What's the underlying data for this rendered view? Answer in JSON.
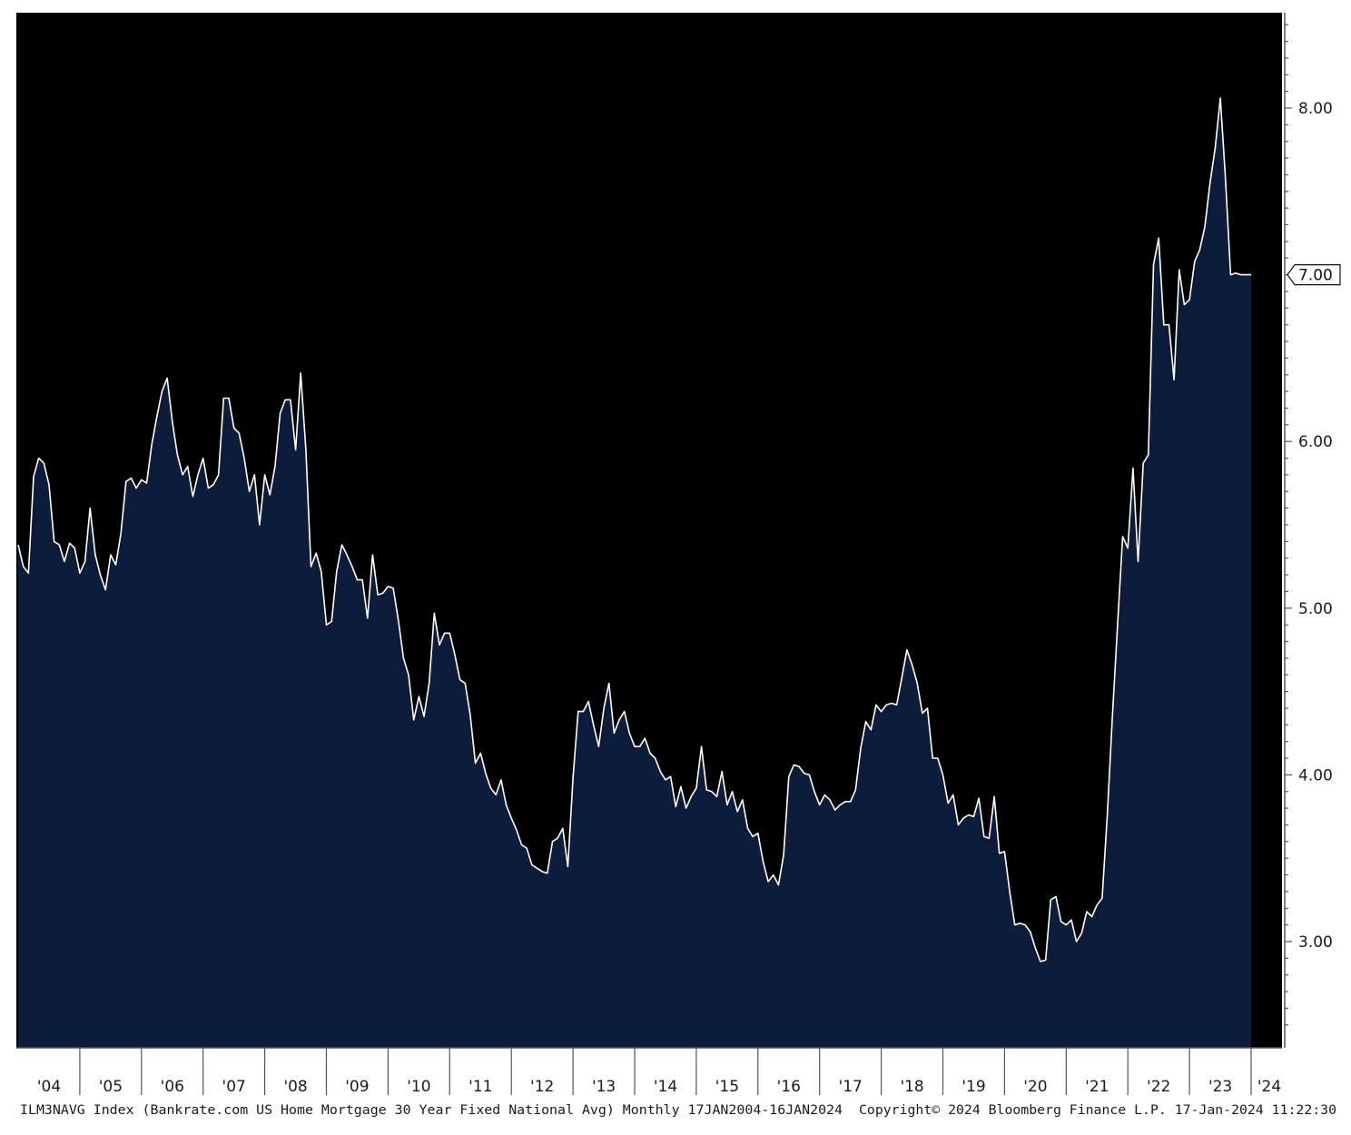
{
  "chart_data": {
    "type": "area",
    "ylim": [
      2.45,
      8.55
    ],
    "y_ticks": [
      "3.00",
      "4.00",
      "5.00",
      "6.00",
      "7.00",
      "8.00"
    ],
    "x_tick_labels": [
      "'04",
      "'05",
      "'06",
      "'07",
      "'08",
      "'09",
      "'10",
      "'11",
      "'12",
      "'13",
      "'14",
      "'15",
      "'16",
      "'17",
      "'18",
      "'19",
      "'20",
      "'21",
      "'22",
      "'23",
      "'24"
    ],
    "last_value_label": "7.00",
    "footer_left": "ILM3NAVG Index (Bankrate.com US Home Mortgage 30 Year Fixed National Avg)  Monthly 17JAN2004-16JAN2024",
    "footer_right": "Copyright© 2024 Bloomberg Finance L.P.   17-Jan-2024 11:22:30",
    "colors": {
      "background": "#000000",
      "area_fill": "#0b1d3a",
      "line": "#ffffff",
      "axis_panel": "#ffffff"
    },
    "grid": false,
    "x_range": [
      "2004-01",
      "2024-01"
    ],
    "series": [
      {
        "x": [
          "2004-01",
          "2004-02",
          "2004-03",
          "2004-04",
          "2004-05",
          "2004-06",
          "2004-07",
          "2004-08",
          "2004-09",
          "2004-10",
          "2004-11",
          "2004-12",
          "2005-01",
          "2005-02",
          "2005-03",
          "2005-04",
          "2005-05",
          "2005-06",
          "2005-07",
          "2005-08",
          "2005-09",
          "2005-10",
          "2005-11",
          "2005-12",
          "2006-01",
          "2006-02",
          "2006-03",
          "2006-04",
          "2006-05",
          "2006-06",
          "2006-07",
          "2006-08",
          "2006-09",
          "2006-10",
          "2006-11",
          "2006-12",
          "2007-01",
          "2007-02",
          "2007-03",
          "2007-04",
          "2007-05",
          "2007-06",
          "2007-07",
          "2007-08",
          "2007-09",
          "2007-10",
          "2007-11",
          "2007-12",
          "2008-01",
          "2008-02",
          "2008-03",
          "2008-04",
          "2008-05",
          "2008-06",
          "2008-07",
          "2008-08",
          "2008-09",
          "2008-10",
          "2008-11",
          "2008-12",
          "2009-01",
          "2009-02",
          "2009-03",
          "2009-04",
          "2009-05",
          "2009-06",
          "2009-07",
          "2009-08",
          "2009-09",
          "2009-10",
          "2009-11",
          "2009-12",
          "2010-01",
          "2010-02",
          "2010-03",
          "2010-04",
          "2010-05",
          "2010-06",
          "2010-07",
          "2010-08",
          "2010-09",
          "2010-10",
          "2010-11",
          "2010-12",
          "2011-01",
          "2011-02",
          "2011-03",
          "2011-04",
          "2011-05",
          "2011-06",
          "2011-07",
          "2011-08",
          "2011-09",
          "2011-10",
          "2011-11",
          "2011-12",
          "2012-01",
          "2012-02",
          "2012-03",
          "2012-04",
          "2012-05",
          "2012-06",
          "2012-07",
          "2012-08",
          "2012-09",
          "2012-10",
          "2012-11",
          "2012-12",
          "2013-01",
          "2013-02",
          "2013-03",
          "2013-04",
          "2013-05",
          "2013-06",
          "2013-07",
          "2013-08",
          "2013-09",
          "2013-10",
          "2013-11",
          "2013-12",
          "2014-01",
          "2014-02",
          "2014-03",
          "2014-04",
          "2014-05",
          "2014-06",
          "2014-07",
          "2014-08",
          "2014-09",
          "2014-10",
          "2014-11",
          "2014-12",
          "2015-01",
          "2015-02",
          "2015-03",
          "2015-04",
          "2015-05",
          "2015-06",
          "2015-07",
          "2015-08",
          "2015-09",
          "2015-10",
          "2015-11",
          "2015-12",
          "2016-01",
          "2016-02",
          "2016-03",
          "2016-04",
          "2016-05",
          "2016-06",
          "2016-07",
          "2016-08",
          "2016-09",
          "2016-10",
          "2016-11",
          "2016-12",
          "2017-01",
          "2017-02",
          "2017-03",
          "2017-04",
          "2017-05",
          "2017-06",
          "2017-07",
          "2017-08",
          "2017-09",
          "2017-10",
          "2017-11",
          "2017-12",
          "2018-01",
          "2018-02",
          "2018-03",
          "2018-04",
          "2018-05",
          "2018-06",
          "2018-07",
          "2018-08",
          "2018-09",
          "2018-10",
          "2018-11",
          "2018-12",
          "2019-01",
          "2019-02",
          "2019-03",
          "2019-04",
          "2019-05",
          "2019-06",
          "2019-07",
          "2019-08",
          "2019-09",
          "2019-10",
          "2019-11",
          "2019-12",
          "2020-01",
          "2020-02",
          "2020-03",
          "2020-04",
          "2020-05",
          "2020-06",
          "2020-07",
          "2020-08",
          "2020-09",
          "2020-10",
          "2020-11",
          "2020-12",
          "2021-01",
          "2021-02",
          "2021-03",
          "2021-04",
          "2021-05",
          "2021-06",
          "2021-07",
          "2021-08",
          "2021-09",
          "2021-10",
          "2021-11",
          "2021-12",
          "2022-01",
          "2022-02",
          "2022-03",
          "2022-04",
          "2022-05",
          "2022-06",
          "2022-07",
          "2022-08",
          "2022-09",
          "2022-10",
          "2022-11",
          "2022-12",
          "2023-01",
          "2023-02",
          "2023-03",
          "2023-04",
          "2023-05",
          "2023-06",
          "2023-07",
          "2023-08",
          "2023-09",
          "2023-10",
          "2023-11",
          "2023-12",
          "2024-01"
        ],
        "values": [
          5.38,
          5.25,
          5.21,
          5.79,
          5.9,
          5.87,
          5.74,
          5.4,
          5.38,
          5.28,
          5.39,
          5.36,
          5.21,
          5.28,
          5.6,
          5.32,
          5.2,
          5.11,
          5.32,
          5.26,
          5.45,
          5.76,
          5.78,
          5.72,
          5.77,
          5.75,
          5.98,
          6.15,
          6.3,
          6.38,
          6.12,
          5.92,
          5.8,
          5.85,
          5.67,
          5.8,
          5.9,
          5.72,
          5.74,
          5.8,
          6.26,
          6.26,
          6.08,
          6.05,
          5.9,
          5.7,
          5.8,
          5.5,
          5.8,
          5.68,
          5.85,
          6.17,
          6.25,
          6.25,
          5.95,
          6.41,
          5.95,
          5.25,
          5.33,
          5.22,
          4.9,
          4.92,
          5.22,
          5.38,
          5.32,
          5.25,
          5.17,
          5.17,
          4.94,
          5.32,
          5.08,
          5.09,
          5.13,
          5.12,
          4.93,
          4.7,
          4.6,
          4.33,
          4.47,
          4.35,
          4.55,
          4.97,
          4.78,
          4.85,
          4.85,
          4.72,
          4.57,
          4.55,
          4.36,
          4.07,
          4.13,
          4.01,
          3.92,
          3.88,
          3.97,
          3.82,
          3.74,
          3.67,
          3.58,
          3.56,
          3.46,
          3.44,
          3.42,
          3.41,
          3.6,
          3.62,
          3.68,
          3.45,
          3.98,
          4.38,
          4.38,
          4.44,
          4.3,
          4.17,
          4.4,
          4.55,
          4.25,
          4.33,
          4.38,
          4.25,
          4.17,
          4.17,
          4.22,
          4.13,
          4.1,
          4.02,
          3.97,
          3.99,
          3.81,
          3.93,
          3.8,
          3.87,
          3.92,
          4.17,
          3.91,
          3.9,
          3.87,
          4.02,
          3.82,
          3.9,
          3.78,
          3.85,
          3.68,
          3.63,
          3.65,
          3.48,
          3.36,
          3.4,
          3.34,
          3.52,
          3.99,
          4.06,
          4.05,
          4.01,
          4.0,
          3.9,
          3.82,
          3.88,
          3.85,
          3.79,
          3.82,
          3.84,
          3.84,
          3.91,
          4.16,
          4.32,
          4.27,
          4.42,
          4.38,
          4.42,
          4.43,
          4.42,
          4.58,
          4.75,
          4.66,
          4.55,
          4.37,
          4.4,
          4.1,
          4.1,
          4.0,
          3.83,
          3.88,
          3.7,
          3.74,
          3.76,
          3.75,
          3.86,
          3.63,
          3.62,
          3.87,
          3.53,
          3.54,
          3.3,
          3.1,
          3.11,
          3.1,
          3.06,
          2.96,
          2.88,
          2.89,
          3.25,
          3.27,
          3.12,
          3.1,
          3.13,
          3.0,
          3.05,
          3.18,
          3.15,
          3.22,
          3.26,
          3.76,
          4.35,
          4.9,
          5.43,
          5.36,
          5.84,
          5.28,
          5.87,
          5.92,
          7.06,
          7.22,
          6.7,
          6.7,
          6.37,
          7.03,
          6.82,
          6.85,
          7.08,
          7.15,
          7.29,
          7.55,
          7.76,
          8.06,
          7.58,
          7.0,
          7.01,
          7.0,
          7.0,
          7.0
        ],
        "color": "#ffffff"
      }
    ]
  }
}
